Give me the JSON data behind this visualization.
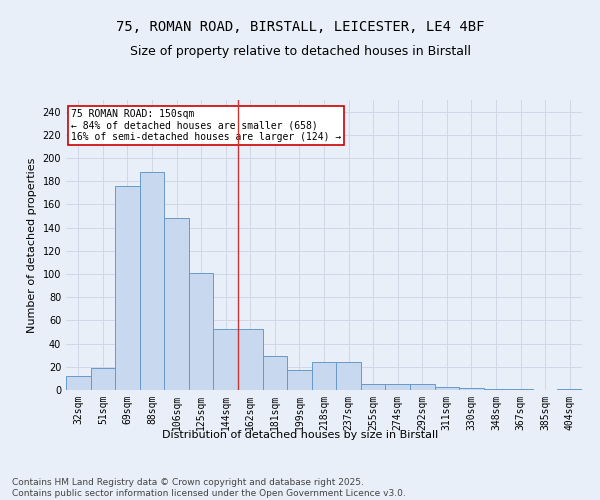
{
  "title1": "75, ROMAN ROAD, BIRSTALL, LEICESTER, LE4 4BF",
  "title2": "Size of property relative to detached houses in Birstall",
  "xlabel": "Distribution of detached houses by size in Birstall",
  "ylabel": "Number of detached properties",
  "footnote": "Contains HM Land Registry data © Crown copyright and database right 2025.\nContains public sector information licensed under the Open Government Licence v3.0.",
  "categories": [
    "32sqm",
    "51sqm",
    "69sqm",
    "88sqm",
    "106sqm",
    "125sqm",
    "144sqm",
    "162sqm",
    "181sqm",
    "199sqm",
    "218sqm",
    "237sqm",
    "255sqm",
    "274sqm",
    "292sqm",
    "311sqm",
    "330sqm",
    "348sqm",
    "367sqm",
    "385sqm",
    "404sqm"
  ],
  "values": [
    12,
    19,
    176,
    188,
    148,
    101,
    53,
    53,
    29,
    17,
    24,
    24,
    5,
    5,
    5,
    3,
    2,
    1,
    1,
    0,
    1
  ],
  "bar_color": "#c8d8ee",
  "bar_edge_color": "#6699cc",
  "highlight_index": 6,
  "highlight_line_color": "#cc3333",
  "annotation_text": "75 ROMAN ROAD: 150sqm\n← 84% of detached houses are smaller (658)\n16% of semi-detached houses are larger (124) →",
  "annotation_box_color": "#ffffff",
  "annotation_box_edge_color": "#cc0000",
  "ylim": [
    0,
    250
  ],
  "yticks": [
    0,
    20,
    40,
    60,
    80,
    100,
    120,
    140,
    160,
    180,
    200,
    220,
    240
  ],
  "bg_color": "#e8eff8",
  "grid_color": "#d0d8e8",
  "title1_fontsize": 10,
  "title2_fontsize": 9,
  "axis_fontsize": 8,
  "tick_fontsize": 7,
  "annotation_fontsize": 7,
  "footnote_fontsize": 6.5
}
